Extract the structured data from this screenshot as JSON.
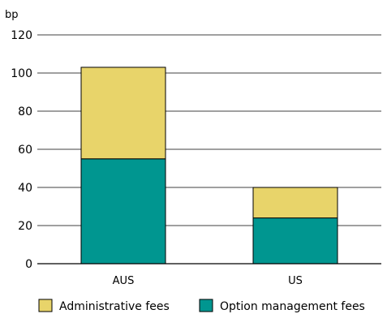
{
  "chart_data": {
    "type": "bar",
    "stacked": true,
    "ylabel": "bp",
    "ylim": [
      0,
      120
    ],
    "yticks": [
      0,
      20,
      40,
      60,
      80,
      100,
      120
    ],
    "grid": true,
    "legend_position": "bottom",
    "categories": [
      "AUS",
      "US"
    ],
    "series": [
      {
        "name": "Option management fees",
        "values": [
          55,
          24
        ],
        "color": "#009690"
      },
      {
        "name": "Administrative fees",
        "values": [
          48,
          16
        ],
        "color": "#e8d46a"
      }
    ],
    "legend_order": [
      "Administrative fees",
      "Option management fees"
    ]
  }
}
